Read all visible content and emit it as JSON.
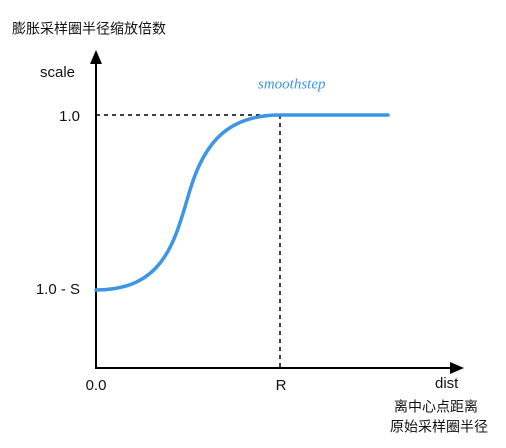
{
  "y_axis": {
    "title": "膨胀采样圈半径缩放倍数",
    "label": "scale",
    "ticks": [
      "1.0",
      "1.0 - S"
    ]
  },
  "x_axis": {
    "label": "dist",
    "ticks": [
      "0.0",
      "R"
    ],
    "notes": [
      "离中心点距离",
      "原始采样圈半径"
    ]
  },
  "curve_label": "smoothstep"
}
